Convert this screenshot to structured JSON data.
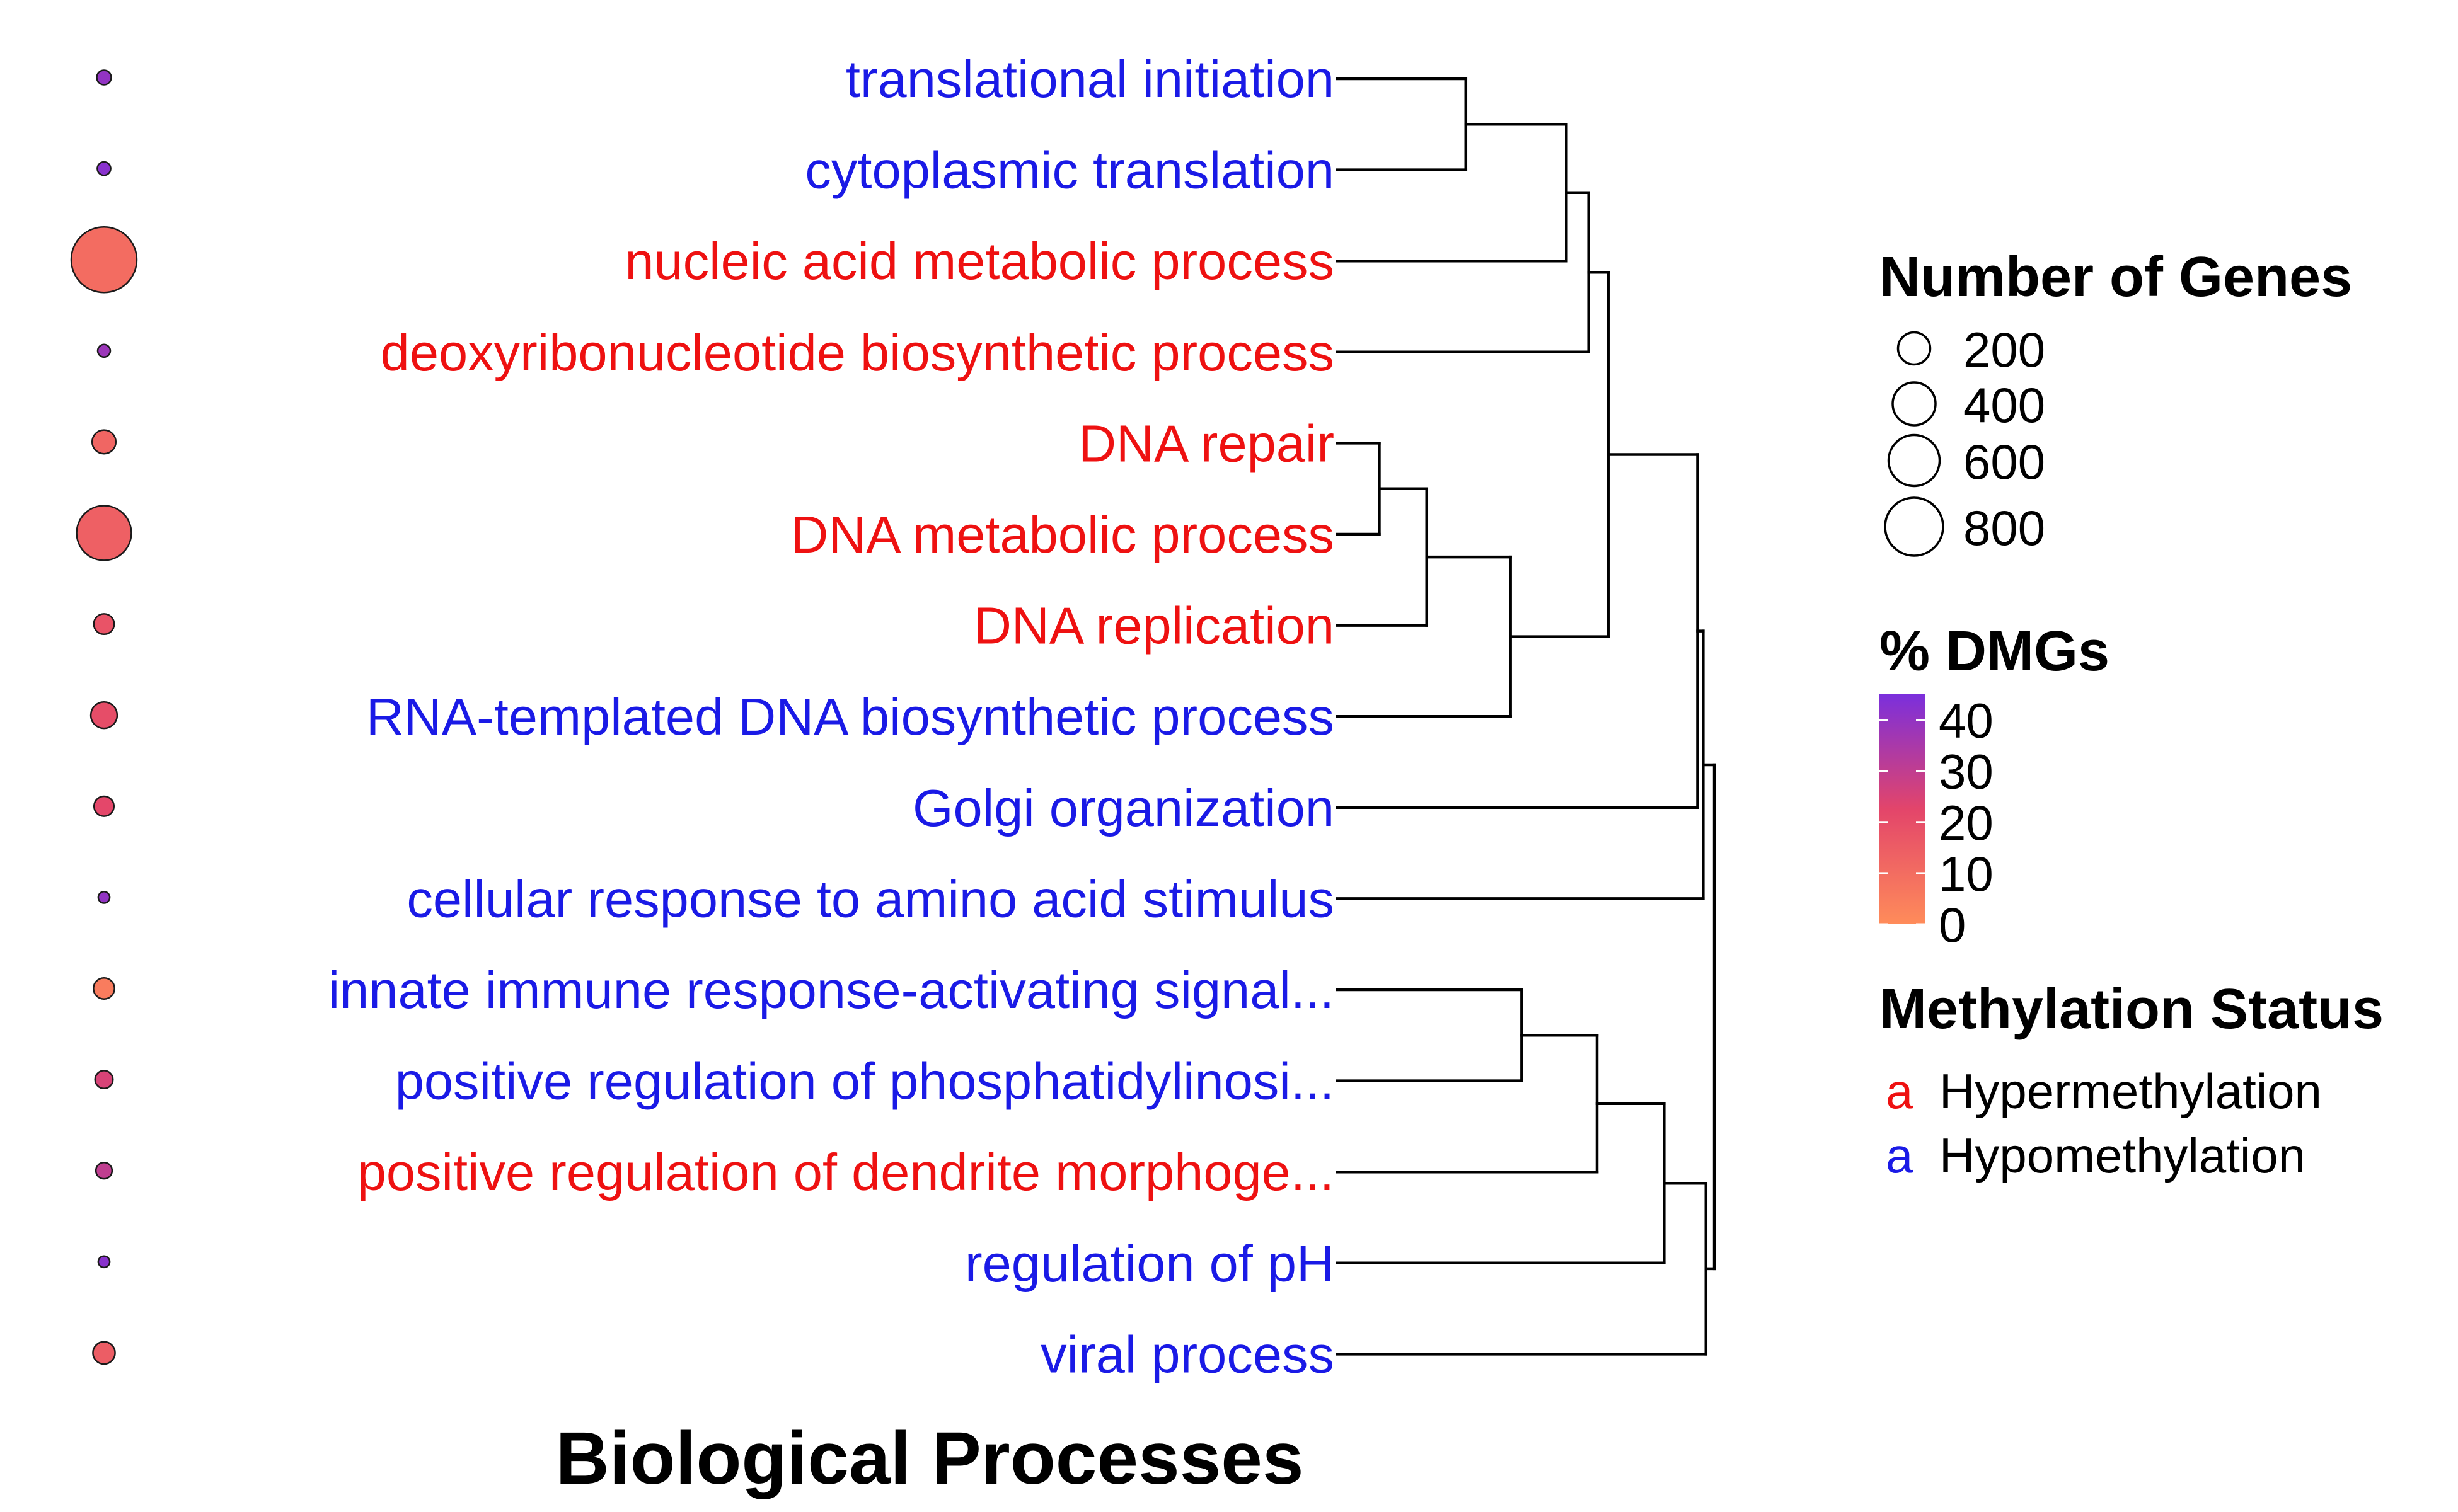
{
  "chart_data": {
    "type": "dendrogram-dotplot",
    "title": "Biological Processes",
    "status_colors": {
      "Hypermethylation": "#ee1111",
      "Hypomethylation": "#1a1ae6"
    },
    "terms": [
      {
        "label": "translational initiation",
        "status": "Hypomethylation",
        "num_genes": 20,
        "pct_dmg": 40
      },
      {
        "label": "cytoplasmic translation",
        "status": "Hypomethylation",
        "num_genes": 15,
        "pct_dmg": 42
      },
      {
        "label": "nucleic acid metabolic process",
        "status": "Hypermethylation",
        "num_genes": 1050,
        "pct_dmg": 10
      },
      {
        "label": "deoxyribonucleotide biosynthetic process",
        "status": "Hypermethylation",
        "num_genes": 12,
        "pct_dmg": 38
      },
      {
        "label": "DNA repair",
        "status": "Hypermethylation",
        "num_genes": 90,
        "pct_dmg": 12
      },
      {
        "label": "DNA metabolic process",
        "status": "Hypermethylation",
        "num_genes": 700,
        "pct_dmg": 14
      },
      {
        "label": "DNA replication",
        "status": "Hypermethylation",
        "num_genes": 60,
        "pct_dmg": 18
      },
      {
        "label": "RNA-templated DNA biosynthetic process",
        "status": "Hypomethylation",
        "num_genes": 120,
        "pct_dmg": 20
      },
      {
        "label": "Golgi organization",
        "status": "Hypomethylation",
        "num_genes": 55,
        "pct_dmg": 22
      },
      {
        "label": "cellular response to amino acid stimulus",
        "status": "Hypomethylation",
        "num_genes": 8,
        "pct_dmg": 40
      },
      {
        "label": "innate immune response-activating signal...",
        "status": "Hypomethylation",
        "num_genes": 65,
        "pct_dmg": 5
      },
      {
        "label": "positive regulation of phosphatidylinosi...",
        "status": "Hypomethylation",
        "num_genes": 40,
        "pct_dmg": 25
      },
      {
        "label": "positive regulation of dendrite morphoge...",
        "status": "Hypermethylation",
        "num_genes": 30,
        "pct_dmg": 30
      },
      {
        "label": "regulation of pH",
        "status": "Hypomethylation",
        "num_genes": 8,
        "pct_dmg": 42
      },
      {
        "label": "viral process",
        "status": "Hypomethylation",
        "num_genes": 75,
        "pct_dmg": 15
      }
    ],
    "dendrogram": [
      {
        "rows": [
          0,
          1
        ],
        "height": 4.6
      },
      {
        "rows": [
          0,
          2
        ],
        "height": 8.2
      },
      {
        "rows": [
          0,
          3
        ],
        "height": 9.0
      },
      {
        "rows": [
          4,
          5
        ],
        "height": 1.5
      },
      {
        "rows": [
          4,
          6
        ],
        "height": 3.2
      },
      {
        "rows": [
          4,
          7
        ],
        "height": 6.2
      },
      {
        "rows": [
          0,
          7
        ],
        "height": 9.7
      },
      {
        "rows": [
          0,
          8
        ],
        "height": 12.9
      },
      {
        "rows": [
          0,
          9
        ],
        "height": 13.1
      },
      {
        "rows": [
          10,
          11
        ],
        "height": 6.6
      },
      {
        "rows": [
          10,
          12
        ],
        "height": 9.3
      },
      {
        "rows": [
          10,
          13
        ],
        "height": 11.7
      },
      {
        "rows": [
          10,
          14
        ],
        "height": 13.2
      },
      {
        "rows": [
          0,
          14
        ],
        "height": 13.5
      }
    ],
    "legend": {
      "size": {
        "title": "Number of Genes",
        "values": [
          200,
          400,
          600,
          800
        ]
      },
      "color": {
        "title": "% DMGs",
        "ticks": [
          40,
          30,
          20,
          10,
          0
        ],
        "low_color": "#ff8c5a",
        "mid_color": "#e3456a",
        "high_color": "#7b2fdc"
      },
      "status": {
        "title": "Methylation Status",
        "key_glyph": "a",
        "items": [
          "Hypermethylation",
          "Hypomethylation"
        ]
      }
    }
  }
}
